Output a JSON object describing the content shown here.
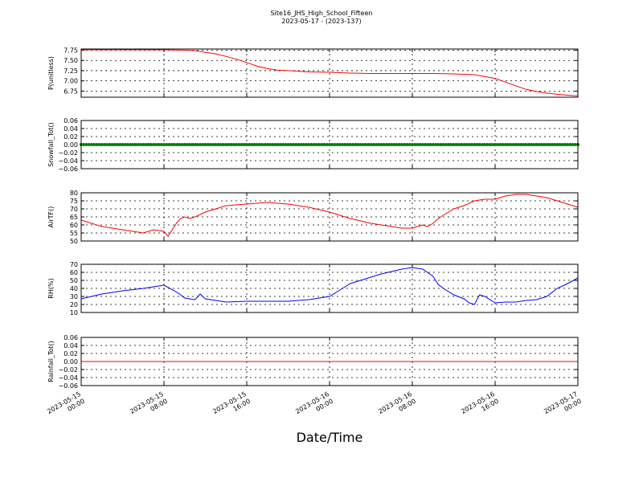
{
  "figure": {
    "title_line1": "Site16_JHS_High_School_Fifteen",
    "title_line2": "2023-05-17 - (2023-137)",
    "xlabel": "Date/Time",
    "x_tick_labels": [
      [
        "2023-05-15",
        "00:00"
      ],
      [
        "2023-05-15",
        "08:00"
      ],
      [
        "2023-05-15",
        "16:00"
      ],
      [
        "2023-05-16",
        "00:00"
      ],
      [
        "2023-05-16",
        "08:00"
      ],
      [
        "2023-05-16",
        "16:00"
      ],
      [
        "2023-05-17",
        "00:00"
      ]
    ]
  },
  "chart_data": [
    {
      "type": "line",
      "ylabel": "P(unitless)",
      "ylim": [
        6.6,
        7.78
      ],
      "yticks": [
        "6.75",
        "7.00",
        "7.25",
        "7.50",
        "7.75"
      ],
      "ytick_values": [
        6.75,
        7.0,
        7.25,
        7.5,
        7.75
      ],
      "grid": true,
      "color": "#ff0000",
      "x_hours": [
        0,
        4,
        8,
        10,
        11,
        12,
        13,
        14,
        15,
        16,
        17,
        18,
        19,
        20,
        22,
        24,
        26,
        28,
        30,
        32,
        34,
        36,
        38,
        40,
        41,
        42,
        43,
        44,
        45,
        46,
        47,
        48
      ],
      "y": [
        7.76,
        7.76,
        7.76,
        7.75,
        7.74,
        7.7,
        7.66,
        7.6,
        7.53,
        7.45,
        7.36,
        7.3,
        7.26,
        7.25,
        7.22,
        7.21,
        7.19,
        7.18,
        7.18,
        7.18,
        7.18,
        7.17,
        7.15,
        7.06,
        6.97,
        6.88,
        6.79,
        6.74,
        6.7,
        6.67,
        6.65,
        6.63
      ]
    },
    {
      "type": "line",
      "ylabel": "Snowfall_Tot()",
      "ylim": [
        -0.06,
        0.06
      ],
      "yticks": [
        "−0.06",
        "−0.04",
        "−0.02",
        "0.00",
        "0.02",
        "0.04",
        "0.06"
      ],
      "ytick_values": [
        -0.06,
        -0.04,
        -0.02,
        0.0,
        0.02,
        0.04,
        0.06
      ],
      "grid": true,
      "color": "#008000",
      "marker": "dots",
      "x_hours": [
        0,
        48
      ],
      "y": [
        0,
        0
      ]
    },
    {
      "type": "line",
      "ylabel": "AirTF()",
      "ylim": [
        50,
        80
      ],
      "yticks": [
        "50",
        "55",
        "60",
        "65",
        "70",
        "75",
        "80"
      ],
      "ytick_values": [
        50,
        55,
        60,
        65,
        70,
        75,
        80
      ],
      "grid": true,
      "color": "#ff0000",
      "x_hours": [
        0,
        2,
        4,
        6,
        7,
        8,
        8.4,
        8.8,
        9.2,
        9.6,
        10,
        10.5,
        11,
        12,
        13,
        14,
        16,
        18,
        20,
        22,
        24,
        26,
        28,
        30,
        31,
        32,
        33,
        33.5,
        34,
        34.5,
        35,
        36,
        37,
        38,
        39,
        40,
        41,
        42,
        43,
        44,
        45,
        46,
        47,
        48
      ],
      "y": [
        63,
        59,
        57,
        55,
        57,
        56,
        53,
        57,
        61,
        64,
        65,
        64,
        65,
        68,
        70,
        72,
        73,
        74,
        73,
        71,
        68,
        64,
        61,
        59,
        58,
        58,
        60,
        59,
        61,
        64,
        66,
        70,
        72,
        75,
        76,
        76,
        78,
        79,
        79,
        78,
        77,
        75,
        73,
        71
      ]
    },
    {
      "type": "line",
      "ylabel": "RH(%)",
      "ylim": [
        10,
        70
      ],
      "yticks": [
        "10",
        "20",
        "30",
        "40",
        "50",
        "60",
        "70"
      ],
      "ytick_values": [
        10,
        20,
        30,
        40,
        50,
        60,
        70
      ],
      "grid": true,
      "color": "#0000ff",
      "x_hours": [
        0,
        2,
        4,
        6,
        7,
        8,
        9,
        9.5,
        10,
        11,
        11.5,
        12,
        13,
        14,
        16,
        18,
        20,
        22,
        24,
        25,
        26,
        28,
        29,
        30,
        31,
        32,
        33,
        34,
        34.5,
        35,
        36,
        37,
        37.5,
        38,
        38.5,
        39,
        40,
        41,
        42,
        43,
        44,
        45,
        46,
        47,
        48
      ],
      "y": [
        27,
        33,
        37,
        40,
        42,
        44,
        37,
        33,
        28,
        26,
        33,
        27,
        25,
        23,
        24,
        24,
        24,
        26,
        30,
        38,
        46,
        54,
        58,
        61,
        64,
        66,
        64,
        55,
        45,
        40,
        32,
        27,
        22,
        20,
        32,
        30,
        22,
        23,
        23,
        25,
        26,
        30,
        40,
        46,
        53
      ]
    },
    {
      "type": "line",
      "ylabel": "Rainfall_Tot()",
      "ylim": [
        -0.06,
        0.06
      ],
      "yticks": [
        "−0.06",
        "−0.04",
        "−0.02",
        "0.00",
        "0.02",
        "0.04",
        "0.06"
      ],
      "ytick_values": [
        -0.06,
        -0.04,
        -0.02,
        0.0,
        0.02,
        0.04,
        0.06
      ],
      "grid": true,
      "color": "#ff0000",
      "x_hours": [
        0,
        48
      ],
      "y": [
        0,
        0
      ]
    }
  ]
}
